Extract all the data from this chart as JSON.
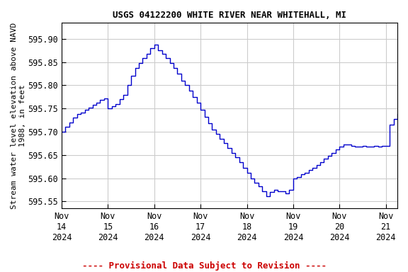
{
  "title": "USGS 04122200 WHITE RIVER NEAR WHITEHALL, MI",
  "ylabel": "Stream water level elevation above NAVD\n1988, in feet",
  "footer": "---- Provisional Data Subject to Revision ----",
  "line_color": "#0000cc",
  "footer_color": "#cc0000",
  "background_color": "#ffffff",
  "grid_color": "#cccccc",
  "ylim": [
    595.535,
    595.935
  ],
  "xlim": [
    0,
    21.75
  ],
  "yticks": [
    595.55,
    595.6,
    595.65,
    595.7,
    595.75,
    595.8,
    595.85,
    595.9
  ],
  "xtick_positions": [
    0,
    3,
    6,
    9,
    12,
    15,
    18,
    21
  ],
  "xtick_labels": [
    "Nov\n14\n2024",
    "Nov\n15\n2024",
    "Nov\n16\n2024",
    "Nov\n17\n2024",
    "Nov\n18\n2024",
    "Nov\n19\n2024",
    "Nov\n20\n2024",
    "Nov\n21\n2024"
  ],
  "data": [
    [
      0.0,
      595.7
    ],
    [
      0.25,
      595.71
    ],
    [
      0.5,
      595.72
    ],
    [
      0.75,
      595.73
    ],
    [
      1.0,
      595.738
    ],
    [
      1.25,
      595.742
    ],
    [
      1.5,
      595.748
    ],
    [
      1.75,
      595.752
    ],
    [
      2.0,
      595.758
    ],
    [
      2.25,
      595.762
    ],
    [
      2.5,
      595.768
    ],
    [
      2.75,
      595.772
    ],
    [
      3.0,
      595.75
    ],
    [
      3.25,
      595.755
    ],
    [
      3.5,
      595.76
    ],
    [
      3.75,
      595.77
    ],
    [
      4.0,
      595.78
    ],
    [
      4.25,
      595.8
    ],
    [
      4.5,
      595.82
    ],
    [
      4.75,
      595.838
    ],
    [
      5.0,
      595.848
    ],
    [
      5.25,
      595.858
    ],
    [
      5.5,
      595.868
    ],
    [
      5.75,
      595.88
    ],
    [
      6.0,
      595.888
    ],
    [
      6.25,
      595.875
    ],
    [
      6.5,
      595.868
    ],
    [
      6.75,
      595.858
    ],
    [
      7.0,
      595.848
    ],
    [
      7.25,
      595.838
    ],
    [
      7.5,
      595.825
    ],
    [
      7.75,
      595.81
    ],
    [
      8.0,
      595.8
    ],
    [
      8.25,
      595.788
    ],
    [
      8.5,
      595.775
    ],
    [
      8.75,
      595.762
    ],
    [
      9.0,
      595.748
    ],
    [
      9.25,
      595.732
    ],
    [
      9.5,
      595.718
    ],
    [
      9.75,
      595.705
    ],
    [
      10.0,
      595.695
    ],
    [
      10.25,
      595.685
    ],
    [
      10.5,
      595.675
    ],
    [
      10.75,
      595.665
    ],
    [
      11.0,
      595.655
    ],
    [
      11.25,
      595.645
    ],
    [
      11.5,
      595.635
    ],
    [
      11.75,
      595.622
    ],
    [
      12.0,
      595.612
    ],
    [
      12.25,
      595.6
    ],
    [
      12.5,
      595.59
    ],
    [
      12.75,
      595.582
    ],
    [
      13.0,
      595.572
    ],
    [
      13.25,
      595.562
    ],
    [
      13.5,
      595.57
    ],
    [
      13.75,
      595.575
    ],
    [
      14.0,
      595.572
    ],
    [
      14.25,
      595.572
    ],
    [
      14.5,
      595.568
    ],
    [
      14.75,
      595.575
    ],
    [
      15.0,
      595.6
    ],
    [
      15.25,
      595.602
    ],
    [
      15.5,
      595.608
    ],
    [
      15.75,
      595.612
    ],
    [
      16.0,
      595.618
    ],
    [
      16.25,
      595.622
    ],
    [
      16.5,
      595.628
    ],
    [
      16.75,
      595.635
    ],
    [
      17.0,
      595.642
    ],
    [
      17.25,
      595.648
    ],
    [
      17.5,
      595.655
    ],
    [
      17.75,
      595.662
    ],
    [
      18.0,
      595.668
    ],
    [
      18.25,
      595.672
    ],
    [
      18.5,
      595.672
    ],
    [
      18.75,
      595.67
    ],
    [
      19.0,
      595.668
    ],
    [
      19.25,
      595.668
    ],
    [
      19.5,
      595.67
    ],
    [
      19.75,
      595.668
    ],
    [
      20.0,
      595.668
    ],
    [
      20.25,
      595.67
    ],
    [
      20.5,
      595.668
    ],
    [
      20.75,
      595.67
    ],
    [
      21.0,
      595.67
    ],
    [
      21.25,
      595.715
    ],
    [
      21.5,
      595.728
    ],
    [
      21.75,
      595.738
    ]
  ]
}
